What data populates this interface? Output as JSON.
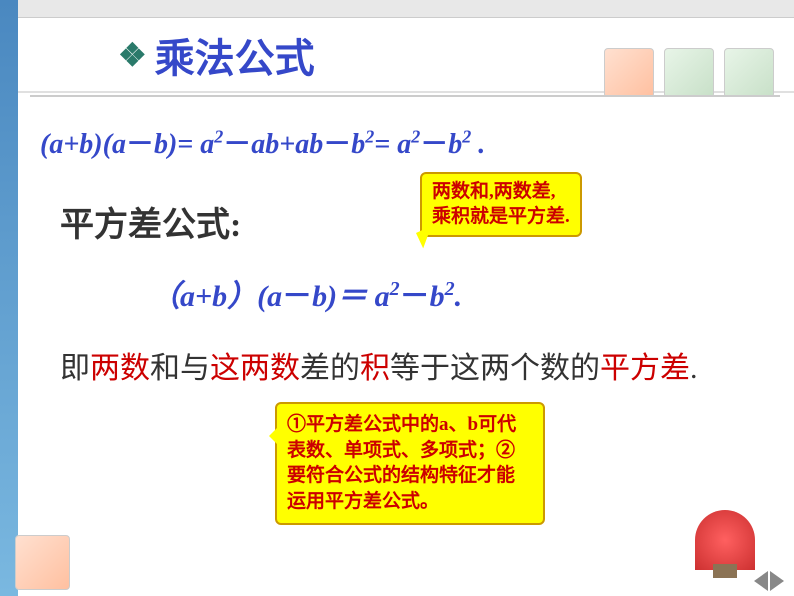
{
  "title": {
    "bullet": "❖",
    "text": "乘法公式"
  },
  "formula1": {
    "lhs": "(a+b)(a－b)=",
    "rhs1": " a²－ab+ab－b²= ",
    "rhs2": " a²－b² ."
  },
  "section": "平方差公式:",
  "callout1": {
    "line1": "两数和,两数差,",
    "line2": "乘积就是平方差."
  },
  "formula2": {
    "lhs": "（a+b）(a－b)＝",
    "rhs": " a²－b²."
  },
  "explanation": {
    "t1": "即",
    "r1": "两数",
    "t2": "和与",
    "r2": "这两数",
    "t3": "差的",
    "r3": "积",
    "t4": "等于这两个数的",
    "r4": "平方差",
    "t5": "."
  },
  "callout2": {
    "text": "①平方差公式中的a、b可代表数、单项式、多项式；②要符合公式的结构特征才能运用平方差公式。"
  },
  "colors": {
    "title": "#3548c9",
    "bullet": "#2a7a6a",
    "formula": "#3548c9",
    "red": "#cc0000",
    "callout_bg": "#ffff00",
    "callout_border": "#cc9900"
  }
}
